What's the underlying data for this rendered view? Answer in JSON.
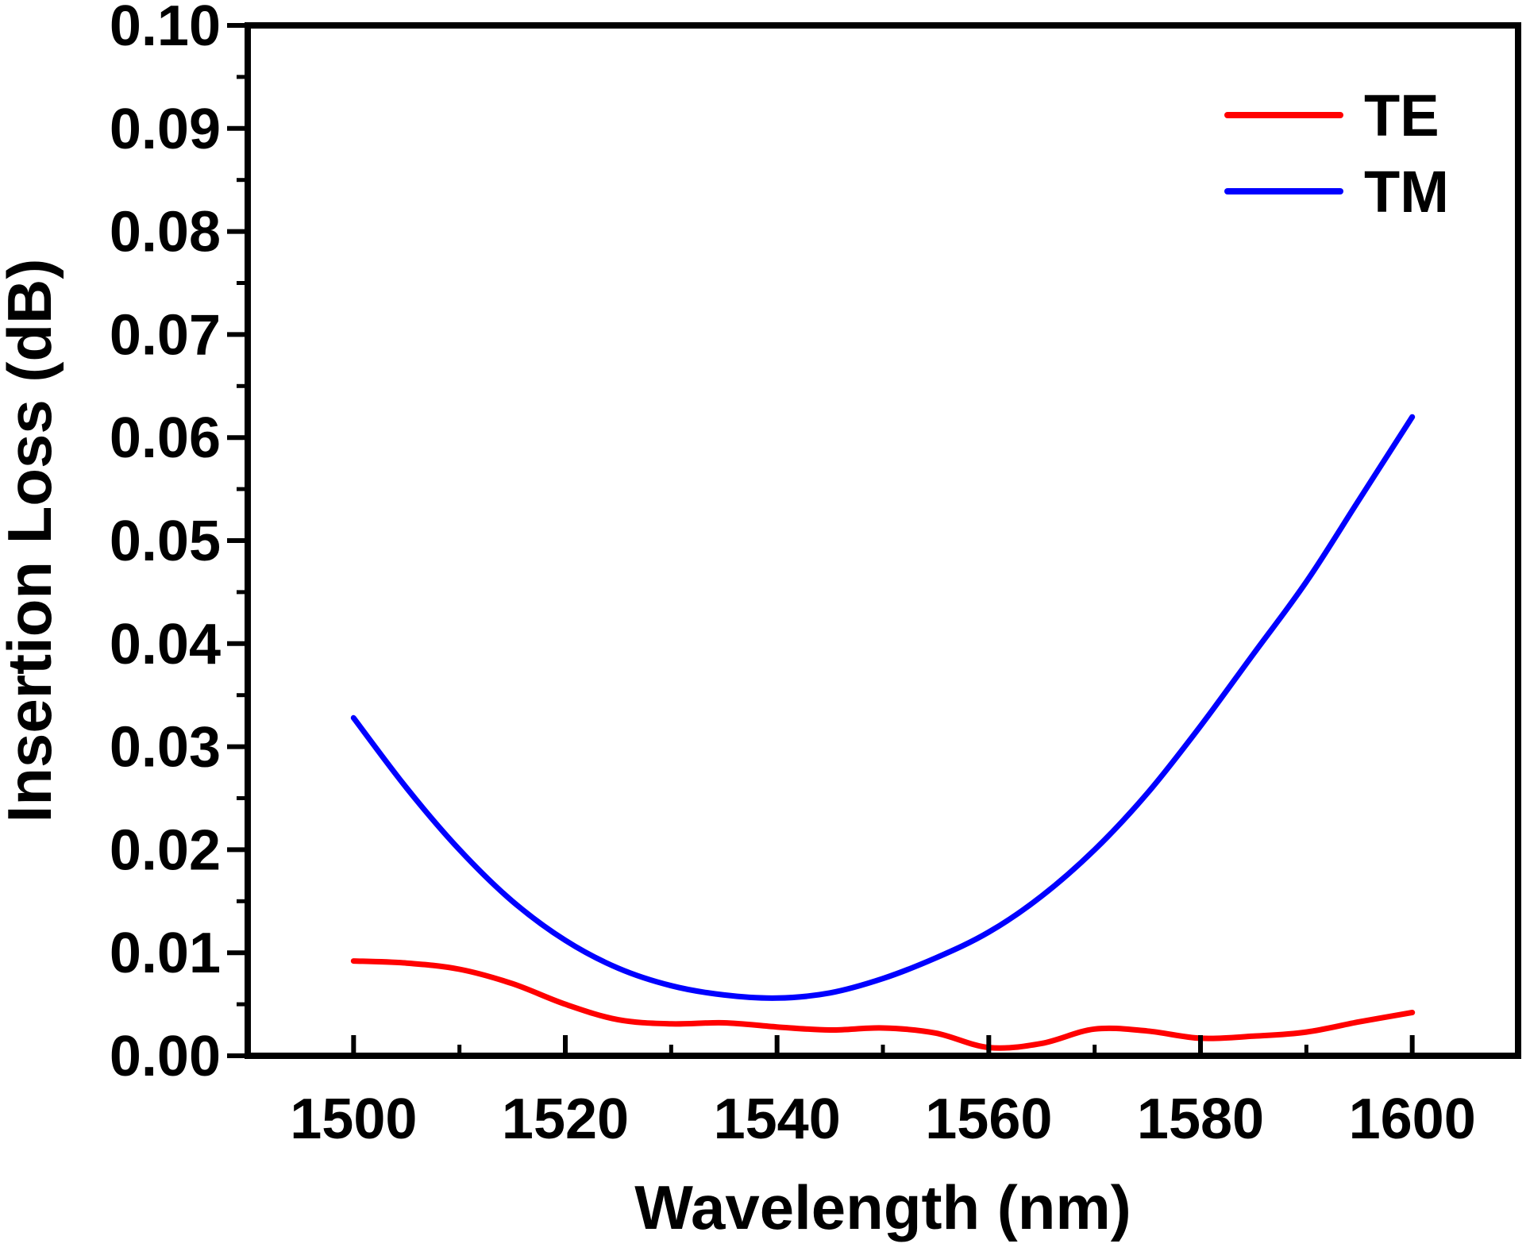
{
  "chart_data": {
    "type": "line",
    "xlabel": "Wavelength (nm)",
    "ylabel": "Insertion Loss (dB)",
    "xlim": [
      1490,
      1610
    ],
    "ylim": [
      0.0,
      0.1
    ],
    "xticks": [
      1500,
      1520,
      1540,
      1560,
      1580,
      1600
    ],
    "yticks": [
      0.0,
      0.01,
      0.02,
      0.03,
      0.04,
      0.05,
      0.06,
      0.07,
      0.08,
      0.09,
      0.1
    ],
    "xtick_labels": [
      "1500",
      "1520",
      "1540",
      "1560",
      "1580",
      "1600"
    ],
    "ytick_labels": [
      "0.00",
      "0.01",
      "0.02",
      "0.03",
      "0.04",
      "0.05",
      "0.06",
      "0.07",
      "0.08",
      "0.09",
      "0.10"
    ],
    "grid": false,
    "legend_position": "top-right",
    "series": [
      {
        "name": "TE",
        "color": "#ff0000",
        "x": [
          1500,
          1505,
          1510,
          1515,
          1520,
          1525,
          1530,
          1535,
          1540,
          1545,
          1550,
          1555,
          1560,
          1565,
          1570,
          1575,
          1580,
          1585,
          1590,
          1595,
          1600
        ],
        "y": [
          0.0092,
          0.009,
          0.0084,
          0.007,
          0.005,
          0.0035,
          0.0031,
          0.0032,
          0.0028,
          0.0025,
          0.0027,
          0.0022,
          0.0008,
          0.0012,
          0.0026,
          0.0024,
          0.0017,
          0.0019,
          0.0023,
          0.0033,
          0.0042
        ]
      },
      {
        "name": "TM",
        "color": "#0000ff",
        "x": [
          1500,
          1505,
          1510,
          1515,
          1520,
          1525,
          1530,
          1535,
          1540,
          1545,
          1550,
          1555,
          1560,
          1565,
          1570,
          1575,
          1580,
          1585,
          1590,
          1595,
          1600
        ],
        "y": [
          0.0328,
          0.026,
          0.02,
          0.015,
          0.0112,
          0.0085,
          0.0068,
          0.0059,
          0.0056,
          0.0061,
          0.0075,
          0.0095,
          0.012,
          0.0155,
          0.02,
          0.0255,
          0.032,
          0.039,
          0.046,
          0.054,
          0.062
        ]
      }
    ]
  }
}
